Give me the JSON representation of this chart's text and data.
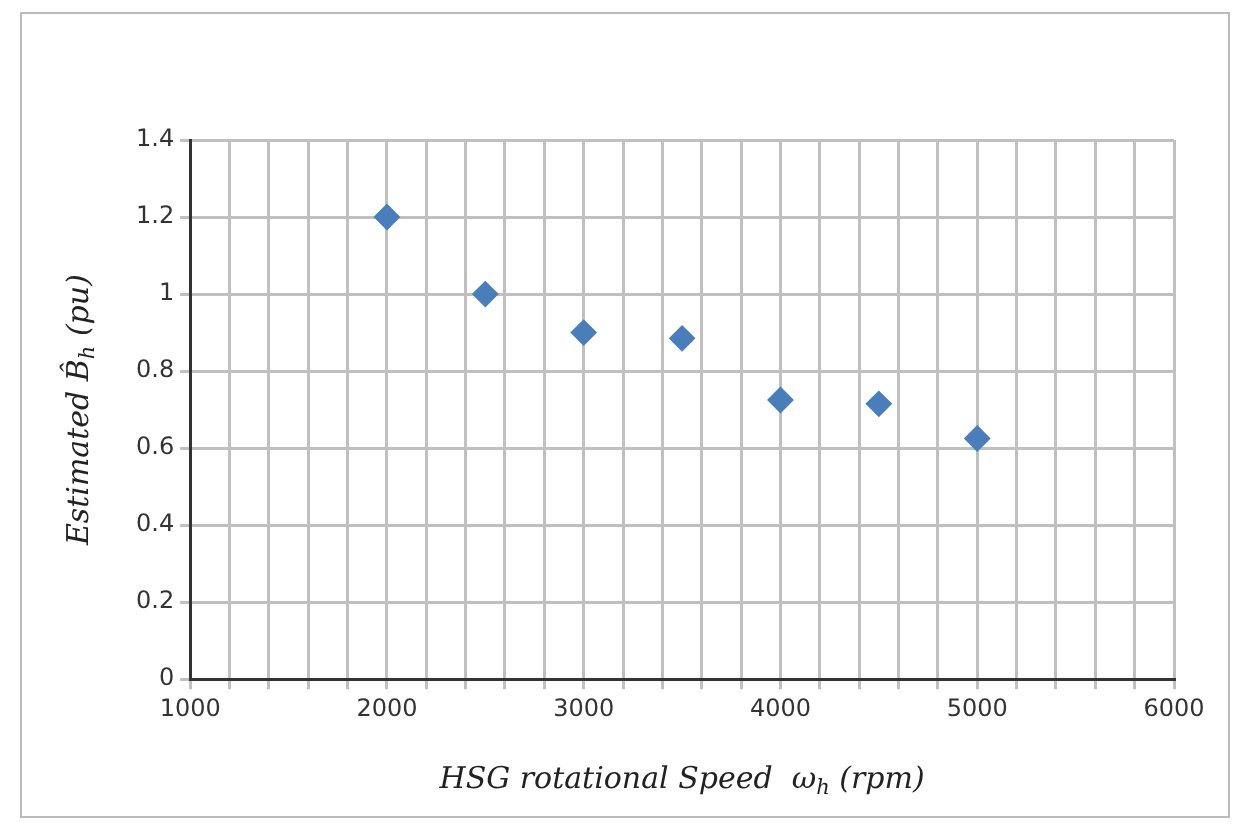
{
  "chart_data": {
    "type": "scatter",
    "xlabel": "HSG rotational Speed  ω$_{h}$ (rpm)",
    "ylabel": "Estimated B̂$_{h}$ (pu)",
    "x": [
      2000,
      2500,
      3000,
      3500,
      4000,
      4500,
      5000
    ],
    "values": [
      1.2,
      1.0,
      0.9,
      0.885,
      0.725,
      0.715,
      0.625
    ],
    "color": "#4a7ebb",
    "marker": "diamond",
    "grid": true,
    "xlim": [
      1000,
      6000
    ],
    "xticks": [
      1000,
      {
        "value": 1200,
        "label": null
      },
      {
        "value": 1400,
        "label": null
      },
      {
        "value": 1600,
        "label": null
      },
      {
        "value": 1800,
        "label": null
      },
      2000,
      {
        "value": 2200,
        "label": null
      },
      {
        "value": 2400,
        "label": null
      },
      {
        "value": 2600,
        "label": null
      },
      {
        "value": 2800,
        "label": null
      },
      3000,
      {
        "value": 3200,
        "label": null
      },
      {
        "value": 3400,
        "label": null
      },
      {
        "value": 3600,
        "label": null
      },
      {
        "value": 3800,
        "label": null
      },
      4000,
      {
        "value": 4200,
        "label": null
      },
      {
        "value": 4400,
        "label": null
      },
      {
        "value": 4600,
        "label": null
      },
      {
        "value": 4800,
        "label": null
      },
      5000,
      {
        "value": 5200,
        "label": null
      },
      {
        "value": 5400,
        "label": null
      },
      {
        "value": 5600,
        "label": null
      },
      {
        "value": 5800,
        "label": null
      },
      6000
    ],
    "ylim": [
      0,
      1.4
    ],
    "yticks": [
      0,
      0.2,
      0.4,
      0.6,
      0.8,
      1,
      1.2,
      1.4
    ]
  }
}
